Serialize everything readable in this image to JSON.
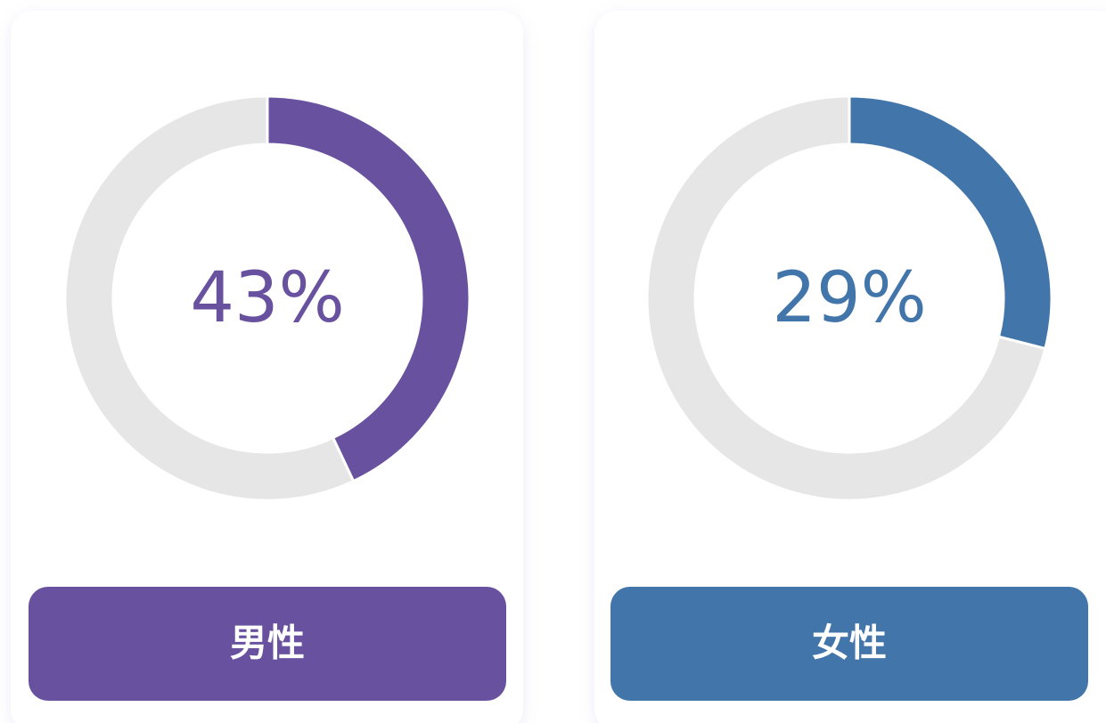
{
  "chart_data": [
    {
      "type": "donut",
      "categories": [
        "男性"
      ],
      "values": [
        43
      ],
      "value_labels": [
        "43%"
      ],
      "color": "#6852a0",
      "track_color": "#e6e6e6"
    },
    {
      "type": "donut",
      "categories": [
        "女性"
      ],
      "values": [
        29
      ],
      "value_labels": [
        "29%"
      ],
      "color": "#4275a9",
      "track_color": "#e6e6e6"
    }
  ]
}
